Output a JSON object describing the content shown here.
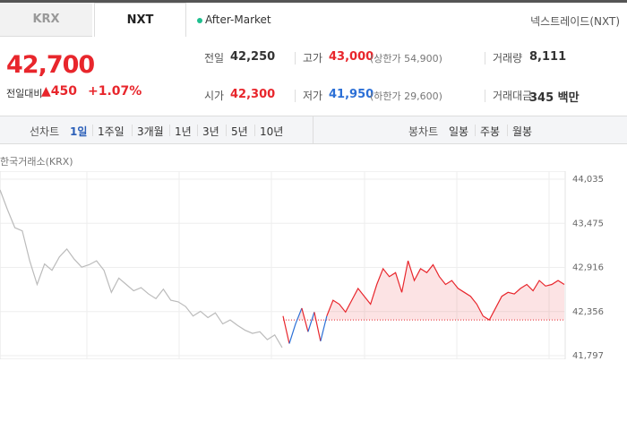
{
  "tabs": {
    "items": [
      "KRX",
      "NXT"
    ],
    "active": 1,
    "status": "After-Market",
    "exchange": "넥스트레이드(NXT)"
  },
  "quote": {
    "price": "42,700",
    "change_label": "전일대비",
    "change": "▲450",
    "change_pct": "+1.07%"
  },
  "info": [
    [
      {
        "label": "전일",
        "value": "42,250"
      },
      {
        "label": "고가",
        "value": "43,000",
        "note": "(상한가 54,900)"
      },
      {
        "label": "거래량",
        "value": "8,111"
      }
    ],
    [
      {
        "label": "시가",
        "value": "42,300"
      },
      {
        "label": "저가",
        "value": "41,950",
        "note": "(하한가 29,600)"
      },
      {
        "label": "거래대금",
        "value": "345 백만"
      }
    ]
  ],
  "periods": {
    "label": "선차트",
    "items": [
      "1일",
      "1주일",
      "3개월",
      "1년",
      "3년",
      "5년",
      "10년"
    ],
    "active": 0,
    "candle_label": "봉차트",
    "candle_items": [
      "일봉",
      "주봉",
      "월봉"
    ]
  },
  "chart": {
    "type": "line",
    "source": "한국거래소(KRX)",
    "ylim": [
      41797,
      44035
    ],
    "yticks": [
      {
        "value": 44035,
        "label": "44,035"
      },
      {
        "value": 43475,
        "label": "43,475"
      },
      {
        "value": 42916,
        "label": "42,916"
      },
      {
        "value": 42356,
        "label": "42,356"
      },
      {
        "value": 41797,
        "label": "41,797"
      }
    ],
    "base": 42250,
    "series": [
      {
        "name": "KRX",
        "color": "#bbbbbb",
        "values": [
          43900,
          43650,
          43420,
          43380,
          43000,
          42700,
          42960,
          42880,
          43050,
          43150,
          43020,
          42920,
          42950,
          43000,
          42880,
          42600,
          42780,
          42700,
          42620,
          42660,
          42580,
          42520,
          42640,
          42500,
          42480,
          42420,
          42300,
          42360,
          42280,
          42340,
          42200,
          42250,
          42180,
          42120,
          42080,
          42100,
          42000,
          42060,
          41900
        ]
      },
      {
        "name": "NXT",
        "color": "#e8262c",
        "down_color": "#2b6fd6",
        "values": [
          42300,
          41950,
          42200,
          42400,
          42100,
          42350,
          41980,
          42300,
          42500,
          42450,
          42350,
          42500,
          42650,
          42550,
          42450,
          42700,
          42900,
          42800,
          42850,
          42600,
          43000,
          42750,
          42900,
          42850,
          42950,
          42800,
          42700,
          42750,
          42650,
          42600,
          42550,
          42450,
          42300,
          42250,
          42400,
          42550,
          42600,
          42580,
          42650,
          42700,
          42620,
          42750,
          42680,
          42700,
          42750,
          42700
        ]
      }
    ]
  }
}
